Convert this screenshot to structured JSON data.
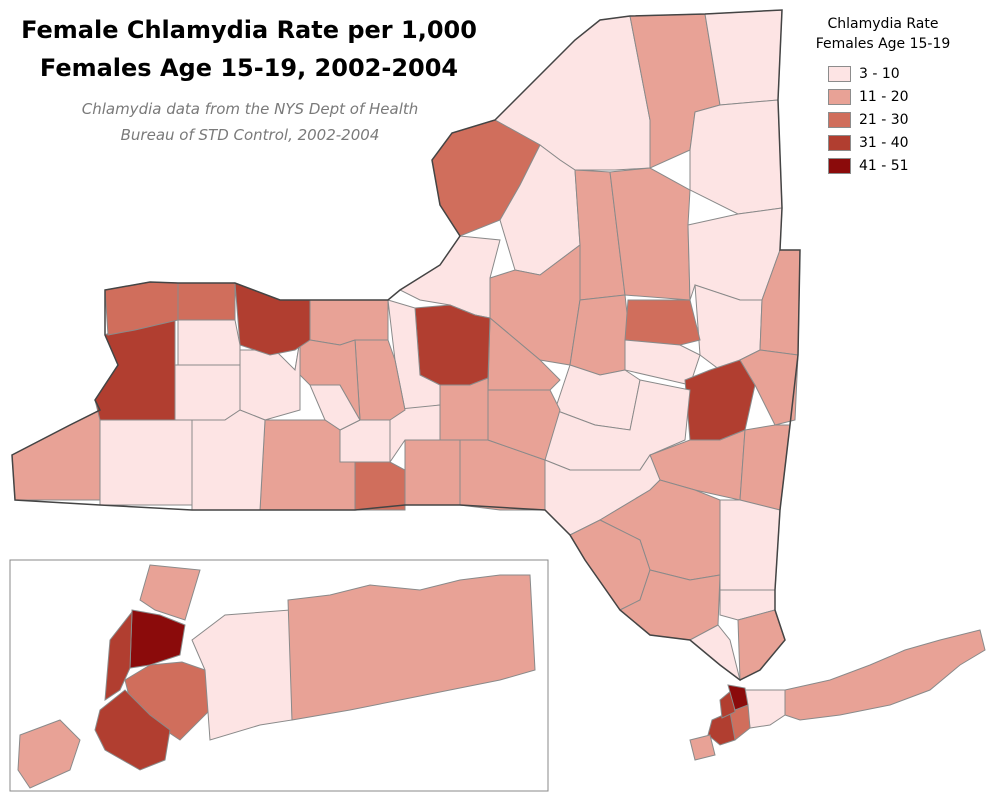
{
  "title_line1": "Female Chlamydia Rate per 1,000",
  "title_line2": "Females Age 15-19, 2002-2004",
  "subtitle_line1": "Chlamydia data from the NYS Dept of Health",
  "subtitle_line2": "Bureau of STD Control, 2002-2004",
  "legend": {
    "title_line1": "Chlamydia Rate",
    "title_line2": "Females Age 15-19",
    "classes": [
      {
        "label": " 3 - 10",
        "color": "#fde4e4"
      },
      {
        "label": "11 - 20",
        "color": "#e8a296"
      },
      {
        "label": "21 - 30",
        "color": "#d06e5c"
      },
      {
        "label": "31 - 40",
        "color": "#b13e30"
      },
      {
        "label": "41 - 51",
        "color": "#8b0b0b"
      }
    ]
  },
  "colors": {
    "state_outline": "#444444",
    "county_border": "#8a8a8a",
    "inset_frame": "#888888"
  },
  "rate_classes": {
    "regions": {
      "niagara-orleans": 2,
      "erie": 3,
      "monroe": 3,
      "wayne-seneca": 1,
      "onondaga": 3,
      "jefferson": 2,
      "st-lawrence": 0,
      "franklin": 1,
      "clinton": 0,
      "essex": 0,
      "hamilton": 1,
      "herkimer": 1,
      "oneida": 1,
      "schenectady": 2,
      "albany": 3,
      "rensselaer": 1,
      "saratoga": 0,
      "warren-washington": 0,
      "columbia": 1,
      "greene": 1,
      "dutchess": 1,
      "ulster": 1,
      "sullivan": 1,
      "orange": 1,
      "putnam": 0,
      "westchester": 1,
      "rockland": 1,
      "chautauqua": 1,
      "cattaraugus": 0,
      "allegany": 0,
      "steuben": 1,
      "chemung": 2,
      "broome": 1,
      "delaware": 0,
      "otsego": 0,
      "madison": 1,
      "cortland": 1,
      "tompkins": 0,
      "genesee": 0,
      "livingston": 0,
      "ontario": 1,
      "yates": 0,
      "schuyler": 0,
      "chenango": 1,
      "tioga": 1,
      "bronx": 4,
      "manhattan": 3,
      "brooklyn": 3,
      "queens": 2,
      "staten-island": 1,
      "nassau": 0,
      "suffolk": 1
    }
  }
}
